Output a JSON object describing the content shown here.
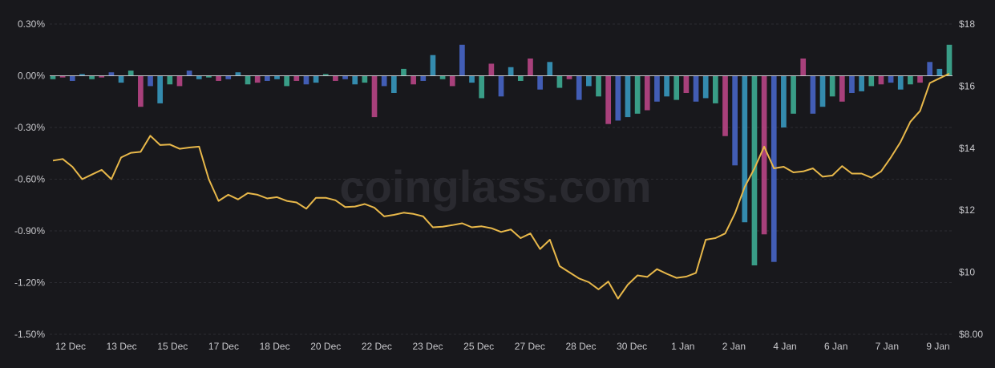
{
  "watermark": "coinglass.com",
  "colors": {
    "background": "#18181c",
    "grid": "#2c2c32",
    "line": "#e8b84a",
    "bar_teal": "#3fb59a",
    "bar_pink": "#c2488c",
    "bar_blue": "#4a6ad0",
    "bar_cyan": "#3aa0c8",
    "bar_brown": "#a8643a",
    "zero_line": "#c8c8cc"
  },
  "chart_data": {
    "type": "bar+line",
    "title": "",
    "xlabel": "",
    "ylabel_left": "",
    "ylabel_right": "",
    "left_axis": {
      "ylim": [
        -1.5,
        0.3
      ],
      "ticks": [
        0.3,
        0.0,
        -0.3,
        -0.6,
        -0.9,
        -1.2,
        -1.5
      ],
      "tick_labels": [
        "0.30%",
        "0.00%",
        "-0.30%",
        "-0.60%",
        "-0.90%",
        "-1.20%",
        "-1.50%"
      ]
    },
    "right_axis": {
      "ylim": [
        8,
        18
      ],
      "ticks": [
        18,
        16,
        14,
        12,
        10,
        8
      ],
      "tick_labels": [
        "$18",
        "$16",
        "$14",
        "$12",
        "$10",
        "$8.00"
      ]
    },
    "x_tick_labels": [
      "12 Dec",
      "13 Dec",
      "15 Dec",
      "17 Dec",
      "18 Dec",
      "20 Dec",
      "22 Dec",
      "23 Dec",
      "25 Dec",
      "27 Dec",
      "28 Dec",
      "30 Dec",
      "1 Jan",
      "2 Jan",
      "4 Jan",
      "6 Jan",
      "7 Jan",
      "9 Jan"
    ],
    "grid": true,
    "price_series": {
      "axis": "right",
      "x": [
        0,
        1,
        2,
        3,
        4,
        5,
        6,
        7,
        8,
        9,
        10,
        11,
        12,
        13,
        14,
        15,
        16,
        17,
        18,
        19,
        20,
        21,
        22,
        23,
        24,
        25,
        26,
        27,
        28,
        29,
        30,
        31,
        32,
        33,
        34,
        35,
        36,
        37,
        38,
        39,
        40,
        41,
        42,
        43,
        44,
        45,
        46,
        47,
        48,
        49,
        50,
        51,
        52,
        53,
        54,
        55,
        56,
        57,
        58,
        59,
        60,
        61,
        62,
        63,
        64,
        65,
        66,
        67,
        68,
        69,
        70,
        71,
        72,
        73,
        74,
        75,
        76,
        77,
        78,
        79,
        80,
        81,
        82,
        83,
        84,
        85,
        86,
        87,
        88,
        89,
        90,
        91,
        92
      ],
      "values": [
        13.6,
        13.65,
        13.4,
        13.0,
        13.15,
        13.3,
        13.0,
        13.7,
        13.85,
        13.88,
        14.4,
        14.1,
        14.12,
        13.98,
        14.02,
        14.05,
        13.0,
        12.3,
        12.5,
        12.35,
        12.55,
        12.5,
        12.38,
        12.42,
        12.3,
        12.25,
        12.05,
        12.4,
        12.4,
        12.32,
        12.1,
        12.12,
        12.2,
        12.08,
        11.8,
        11.85,
        11.92,
        11.88,
        11.8,
        11.45,
        11.47,
        11.52,
        11.58,
        11.45,
        11.48,
        11.42,
        11.3,
        11.38,
        11.1,
        11.25,
        10.75,
        11.05,
        10.2,
        10.0,
        9.8,
        9.68,
        9.45,
        9.7,
        9.15,
        9.6,
        9.9,
        9.85,
        10.1,
        9.95,
        9.82,
        9.86,
        9.98,
        11.05,
        11.1,
        11.25,
        11.9,
        12.75,
        13.35,
        14.05,
        13.35,
        13.4,
        13.22,
        13.25,
        13.35,
        13.08,
        13.12,
        13.42,
        13.18,
        13.18,
        13.05,
        13.25,
        13.7,
        14.2,
        14.85,
        15.2,
        16.1,
        16.25,
        16.4
      ]
    },
    "funding_series": {
      "axis": "left",
      "unit": "%",
      "x": [
        0,
        1,
        2,
        3,
        4,
        5,
        6,
        7,
        8,
        9,
        10,
        11,
        12,
        13,
        14,
        15,
        16,
        17,
        18,
        19,
        20,
        21,
        22,
        23,
        24,
        25,
        26,
        27,
        28,
        29,
        30,
        31,
        32,
        33,
        34,
        35,
        36,
        37,
        38,
        39,
        40,
        41,
        42,
        43,
        44,
        45,
        46,
        47,
        48,
        49,
        50,
        51,
        52,
        53,
        54,
        55,
        56,
        57,
        58,
        59,
        60,
        61,
        62,
        63,
        64,
        65,
        66,
        67,
        68,
        69,
        70,
        71,
        72,
        73,
        74,
        75,
        76,
        77,
        78,
        79,
        80,
        81,
        82,
        83,
        84,
        85,
        86,
        87,
        88,
        89,
        90,
        91,
        92
      ],
      "values": [
        -0.02,
        -0.01,
        -0.03,
        0.01,
        -0.02,
        -0.01,
        0.02,
        -0.04,
        0.03,
        -0.18,
        -0.06,
        -0.16,
        -0.05,
        -0.06,
        0.03,
        -0.02,
        -0.01,
        -0.03,
        -0.02,
        0.02,
        -0.05,
        -0.04,
        -0.03,
        -0.02,
        -0.06,
        -0.03,
        -0.05,
        -0.04,
        0.01,
        -0.03,
        -0.02,
        -0.05,
        -0.04,
        -0.24,
        -0.06,
        -0.1,
        0.04,
        -0.05,
        -0.03,
        0.12,
        -0.02,
        -0.06,
        0.18,
        -0.04,
        -0.13,
        0.07,
        -0.12,
        0.05,
        -0.03,
        0.1,
        -0.08,
        0.08,
        -0.07,
        -0.02,
        -0.14,
        -0.06,
        -0.12,
        -0.28,
        -0.26,
        -0.24,
        -0.22,
        -0.2,
        -0.15,
        -0.12,
        -0.14,
        -0.1,
        -0.15,
        -0.13,
        -0.16,
        -0.35,
        -0.52,
        -0.85,
        -1.1,
        -0.92,
        -1.08,
        -0.3,
        -0.22,
        0.1,
        -0.22,
        -0.18,
        -0.12,
        -0.15,
        -0.1,
        -0.09,
        -0.06,
        -0.05,
        -0.04,
        -0.08,
        -0.05,
        -0.04,
        0.08,
        0.04,
        0.18
      ]
    }
  }
}
